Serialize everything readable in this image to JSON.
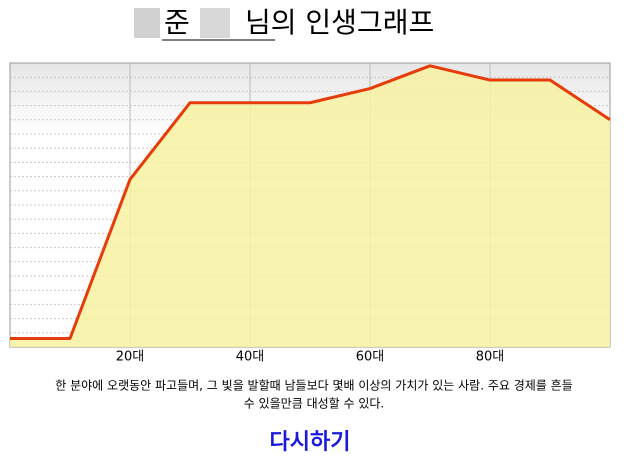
{
  "title_name": "준",
  "title_rest": "님의 인생그래프",
  "chart_data": {
    "type": "line",
    "x": [
      0,
      10,
      20,
      30,
      40,
      50,
      60,
      70,
      80,
      90,
      100
    ],
    "values": [
      3,
      3,
      59,
      86,
      86,
      86,
      91,
      99,
      94,
      94,
      80
    ],
    "color": "#e63c0a",
    "fill": "#f8f1a2",
    "xlim": [
      0,
      100
    ],
    "xticks": [
      {
        "value": 20,
        "label": "20대"
      },
      {
        "value": 40,
        "label": "40대"
      },
      {
        "value": 60,
        "label": "60대"
      },
      {
        "value": 80,
        "label": "80대"
      }
    ],
    "ylim": [
      0,
      100
    ],
    "yticks": [
      5,
      10,
      15,
      20,
      25,
      30,
      35,
      40,
      45,
      50,
      55,
      60,
      65,
      70,
      75,
      80,
      85,
      90,
      95
    ],
    "grid": true
  },
  "description": [
    "한 분야에 오랫동안 파고들며, 그 빛을 발할때 남들보다 몇배 이상의 가치가 있는 사람. 주요 경제를 흔들",
    "수 있을만큼 대성할 수 있다."
  ],
  "button": "다시하기"
}
